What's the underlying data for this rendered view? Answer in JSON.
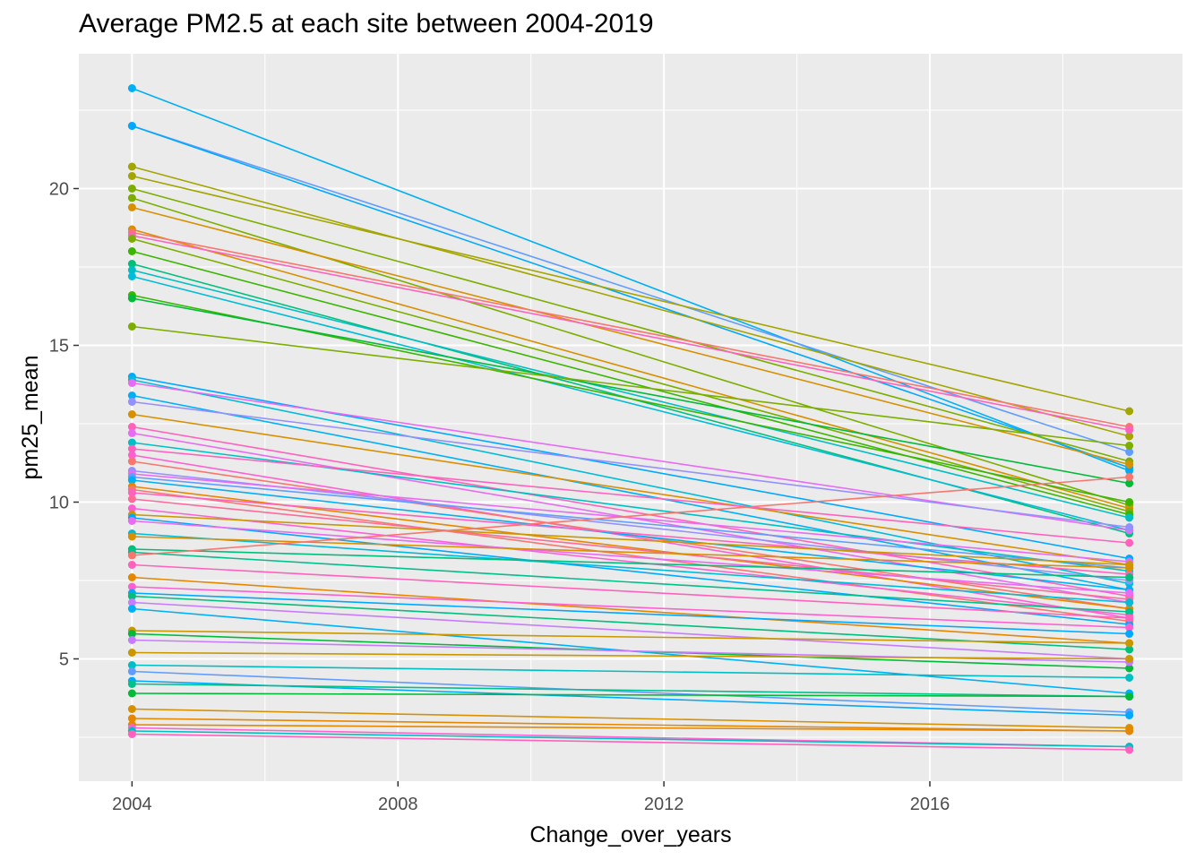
{
  "chart_data": {
    "type": "line",
    "title": "Average PM2.5 at each site between 2004-2019",
    "xlabel": "Change_over_years",
    "ylabel": "pm25_mean",
    "x": [
      2004,
      2019
    ],
    "xlim": [
      2003.2,
      2019.8
    ],
    "ylim": [
      1.1,
      24.3
    ],
    "x_ticks": [
      2004,
      2008,
      2012,
      2016
    ],
    "x_tick_labels": [
      "2004",
      "2008",
      "2012",
      "2016"
    ],
    "y_ticks": [
      5,
      10,
      15,
      20
    ],
    "y_tick_labels": [
      "5",
      "10",
      "15",
      "20"
    ],
    "grid": true,
    "legend": "none",
    "background": "#ebebeb",
    "series": [
      {
        "values": [
          23.2,
          11.0
        ],
        "color": "#00b0f6"
      },
      {
        "values": [
          22.0,
          11.6
        ],
        "color": "#619cff"
      },
      {
        "values": [
          22.0,
          11.1
        ],
        "color": "#00a9ff"
      },
      {
        "values": [
          20.7,
          12.1
        ],
        "color": "#a3a500"
      },
      {
        "values": [
          20.4,
          12.9
        ],
        "color": "#a3a500"
      },
      {
        "values": [
          20.0,
          11.3
        ],
        "color": "#7cae00"
      },
      {
        "values": [
          19.7,
          9.9
        ],
        "color": "#7cae00"
      },
      {
        "values": [
          19.4,
          11.2
        ],
        "color": "#d89000"
      },
      {
        "values": [
          18.7,
          9.8
        ],
        "color": "#d89000"
      },
      {
        "values": [
          18.6,
          12.4
        ],
        "color": "#f8766d"
      },
      {
        "values": [
          18.5,
          12.3
        ],
        "color": "#ff62bc"
      },
      {
        "values": [
          18.4,
          9.7
        ],
        "color": "#7cae00"
      },
      {
        "values": [
          18.0,
          9.6
        ],
        "color": "#39b600"
      },
      {
        "values": [
          17.6,
          9.0
        ],
        "color": "#00bf7d"
      },
      {
        "values": [
          17.4,
          9.5
        ],
        "color": "#00bfc4"
      },
      {
        "values": [
          17.2,
          9.1
        ],
        "color": "#00bcd8"
      },
      {
        "values": [
          16.6,
          10.0
        ],
        "color": "#39b600"
      },
      {
        "values": [
          16.5,
          10.6
        ],
        "color": "#00ba38"
      },
      {
        "values": [
          15.6,
          11.8
        ],
        "color": "#7cae00"
      },
      {
        "values": [
          14.0,
          8.2
        ],
        "color": "#00a9ff"
      },
      {
        "values": [
          13.9,
          7.4
        ],
        "color": "#00bcd8"
      },
      {
        "values": [
          13.8,
          9.1
        ],
        "color": "#e76bf3"
      },
      {
        "values": [
          13.4,
          7.2
        ],
        "color": "#00b0f6"
      },
      {
        "values": [
          13.2,
          9.2
        ],
        "color": "#9590ff"
      },
      {
        "values": [
          12.8,
          8.0
        ],
        "color": "#d89000"
      },
      {
        "values": [
          12.4,
          7.0
        ],
        "color": "#ff62bc"
      },
      {
        "values": [
          12.2,
          6.8
        ],
        "color": "#e76bf3"
      },
      {
        "values": [
          11.9,
          7.8
        ],
        "color": "#00bfc4"
      },
      {
        "values": [
          11.7,
          8.7
        ],
        "color": "#ff62bc"
      },
      {
        "values": [
          11.5,
          6.3
        ],
        "color": "#fd61d1"
      },
      {
        "values": [
          11.3,
          6.6
        ],
        "color": "#f8766d"
      },
      {
        "values": [
          11.0,
          7.5
        ],
        "color": "#9590ff"
      },
      {
        "values": [
          10.9,
          8.1
        ],
        "color": "#e76bf3"
      },
      {
        "values": [
          10.8,
          7.9
        ],
        "color": "#619cff"
      },
      {
        "values": [
          10.7,
          7.2
        ],
        "color": "#00b0f6"
      },
      {
        "values": [
          10.5,
          6.6
        ],
        "color": "#e58700"
      },
      {
        "values": [
          10.4,
          6.2
        ],
        "color": "#f8766d"
      },
      {
        "values": [
          10.3,
          7.7
        ],
        "color": "#ff62bc"
      },
      {
        "values": [
          10.1,
          6.9
        ],
        "color": "#ff6a98"
      },
      {
        "values": [
          9.8,
          6.4
        ],
        "color": "#fd61d1"
      },
      {
        "values": [
          9.6,
          8.0
        ],
        "color": "#c99800"
      },
      {
        "values": [
          9.5,
          6.1
        ],
        "color": "#00a9ff"
      },
      {
        "values": [
          9.4,
          7.1
        ],
        "color": "#e76bf3"
      },
      {
        "values": [
          9.0,
          6.8
        ],
        "color": "#00bcd8"
      },
      {
        "values": [
          8.9,
          7.9
        ],
        "color": "#d89000"
      },
      {
        "values": [
          8.5,
          7.6
        ],
        "color": "#00bf7d"
      },
      {
        "values": [
          8.4,
          6.5
        ],
        "color": "#00c08b"
      },
      {
        "values": [
          8.3,
          10.8
        ],
        "color": "#f8766d"
      },
      {
        "values": [
          8.0,
          6.3
        ],
        "color": "#ff62bc"
      },
      {
        "values": [
          7.6,
          5.5
        ],
        "color": "#e58700"
      },
      {
        "values": [
          7.3,
          6.0
        ],
        "color": "#fd61d1"
      },
      {
        "values": [
          7.1,
          5.8
        ],
        "color": "#00a9ff"
      },
      {
        "values": [
          7.0,
          5.3
        ],
        "color": "#00bf7d"
      },
      {
        "values": [
          6.8,
          5.0
        ],
        "color": "#c77cff"
      },
      {
        "values": [
          6.6,
          3.9
        ],
        "color": "#00b0f6"
      },
      {
        "values": [
          5.9,
          5.5
        ],
        "color": "#c99800"
      },
      {
        "values": [
          5.8,
          4.7
        ],
        "color": "#00ba38"
      },
      {
        "values": [
          5.6,
          4.9
        ],
        "color": "#c77cff"
      },
      {
        "values": [
          5.2,
          5.0
        ],
        "color": "#c99800"
      },
      {
        "values": [
          4.8,
          4.4
        ],
        "color": "#00bfc4"
      },
      {
        "values": [
          4.6,
          3.3
        ],
        "color": "#619cff"
      },
      {
        "values": [
          4.3,
          3.2
        ],
        "color": "#00a9ff"
      },
      {
        "values": [
          4.2,
          3.8
        ],
        "color": "#00c08b"
      },
      {
        "values": [
          3.9,
          3.8
        ],
        "color": "#00ba38"
      },
      {
        "values": [
          3.4,
          2.8
        ],
        "color": "#d89000"
      },
      {
        "values": [
          3.1,
          2.7
        ],
        "color": "#e58700"
      },
      {
        "values": [
          2.9,
          2.7
        ],
        "color": "#e58700"
      },
      {
        "values": [
          2.8,
          2.2
        ],
        "color": "#fd61d1"
      },
      {
        "values": [
          2.7,
          2.2
        ],
        "color": "#00bfc4"
      },
      {
        "values": [
          2.6,
          2.1
        ],
        "color": "#ff62bc"
      }
    ]
  }
}
